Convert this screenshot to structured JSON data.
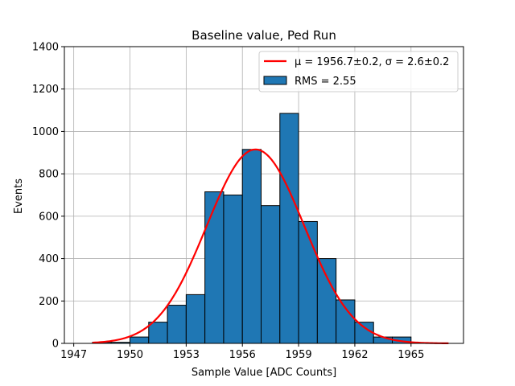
{
  "chart_data": {
    "type": "bar",
    "title": "Baseline value, Ped Run",
    "xlabel": "Sample Value [ADC Counts]",
    "ylabel": "Events",
    "xlim": [
      1946.5,
      1967.8
    ],
    "ylim": [
      0,
      1400
    ],
    "xticks": [
      1947,
      1950,
      1953,
      1956,
      1959,
      1962,
      1965
    ],
    "yticks": [
      0,
      200,
      400,
      600,
      800,
      1000,
      1200,
      1400
    ],
    "grid": true,
    "legend_position": "top-right",
    "histogram": {
      "name": "RMS = 2.55",
      "color": "#1f77b4",
      "edge_color": "#000000",
      "bins": [
        {
          "x0": 1948.0,
          "x1": 1949.0,
          "value": 5
        },
        {
          "x0": 1949.0,
          "x1": 1950.0,
          "value": 5
        },
        {
          "x0": 1950.0,
          "x1": 1951.0,
          "value": 30
        },
        {
          "x0": 1951.0,
          "x1": 1952.0,
          "value": 100
        },
        {
          "x0": 1952.0,
          "x1": 1953.0,
          "value": 180
        },
        {
          "x0": 1953.0,
          "x1": 1954.0,
          "value": 230
        },
        {
          "x0": 1954.0,
          "x1": 1955.0,
          "value": 715
        },
        {
          "x0": 1955.0,
          "x1": 1956.0,
          "value": 700
        },
        {
          "x0": 1956.0,
          "x1": 1957.0,
          "value": 915
        },
        {
          "x0": 1957.0,
          "x1": 1958.0,
          "value": 650
        },
        {
          "x0": 1958.0,
          "x1": 1959.0,
          "value": 1085
        },
        {
          "x0": 1959.0,
          "x1": 1960.0,
          "value": 575
        },
        {
          "x0": 1960.0,
          "x1": 1961.0,
          "value": 400
        },
        {
          "x0": 1961.0,
          "x1": 1962.0,
          "value": 205
        },
        {
          "x0": 1962.0,
          "x1": 1963.0,
          "value": 100
        },
        {
          "x0": 1963.0,
          "x1": 1964.0,
          "value": 30
        },
        {
          "x0": 1964.0,
          "x1": 1965.0,
          "value": 30
        }
      ]
    },
    "fit": {
      "type": "gaussian",
      "name": "μ = 1956.7±0.2, σ = 2.6±0.2",
      "color": "#ff0000",
      "mean": 1956.7,
      "sigma": 2.6,
      "amplitude": 915,
      "x_range": [
        1948.0,
        1967.0
      ]
    }
  }
}
